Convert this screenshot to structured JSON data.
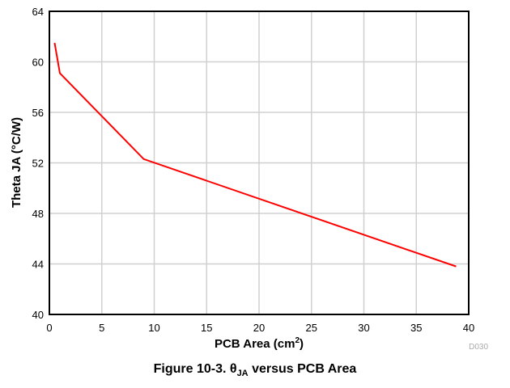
{
  "chart_data": {
    "type": "line",
    "title": "",
    "xlabel": "PCB Area (cm",
    "xlabel_sup": "2",
    "xlabel_end": ")",
    "ylabel": "Theta JA (°C/W)",
    "xlim": [
      0,
      40
    ],
    "ylim": [
      40,
      64
    ],
    "xticks": [
      0,
      5,
      10,
      15,
      20,
      25,
      30,
      35,
      40
    ],
    "yticks": [
      40,
      44,
      48,
      52,
      56,
      60,
      64
    ],
    "grid": true,
    "series": [
      {
        "name": "Theta JA",
        "color": "#ff0000",
        "x": [
          0.5,
          1.0,
          9.0,
          38.8
        ],
        "y": [
          61.5,
          59.1,
          52.3,
          43.8
        ]
      }
    ],
    "annotation": "D030"
  },
  "caption": {
    "prefix": "Figure 10-3. θ",
    "sub": "JA",
    "suffix": " versus PCB Area"
  }
}
